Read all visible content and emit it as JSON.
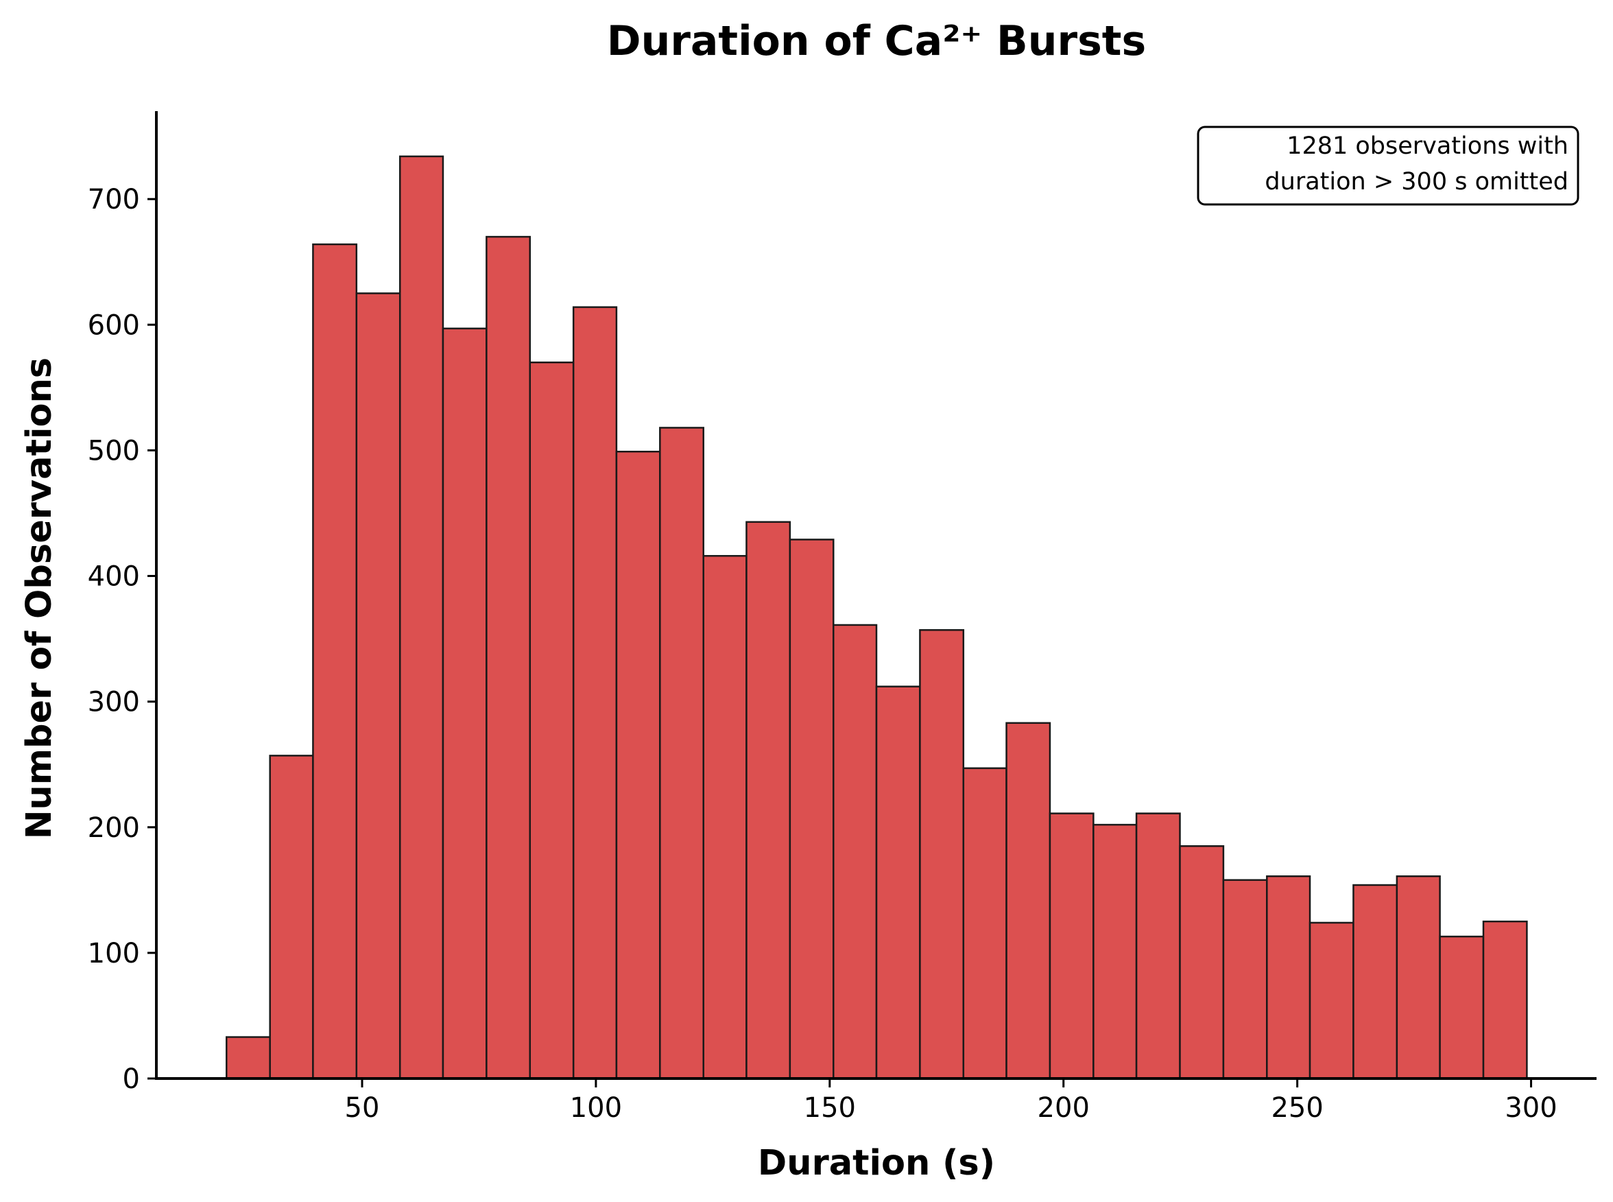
{
  "chart_data": {
    "type": "bar",
    "title": "Duration of Ca²⁺ Bursts",
    "xlabel": "Duration (s)",
    "ylabel": "Number of Observations",
    "xlim": [
      6,
      314
    ],
    "ylim": [
      0,
      770
    ],
    "xticks": [
      50,
      100,
      150,
      200,
      250,
      300
    ],
    "yticks": [
      0,
      100,
      200,
      300,
      400,
      500,
      600,
      700
    ],
    "bin_edges": [
      21,
      30.3,
      39.5,
      48.8,
      58.1,
      67.3,
      76.6,
      85.9,
      95.2,
      104.4,
      113.7,
      123,
      132.2,
      141.5,
      150.8,
      160,
      169.3,
      178.6,
      187.8,
      197.1,
      206.4,
      215.6,
      224.9,
      234.2,
      243.5,
      252.7,
      262,
      271.3,
      280.5,
      289.8,
      299.1
    ],
    "values": [
      33,
      257,
      664,
      625,
      734,
      597,
      670,
      570,
      614,
      499,
      518,
      416,
      443,
      429,
      361,
      312,
      357,
      247,
      283,
      211,
      202,
      211,
      185,
      158,
      161,
      124,
      154,
      161,
      113,
      125
    ],
    "grid": false,
    "bar_color": "#dc5050",
    "edge_color": "#1a1a1a",
    "annotation": [
      "1281 observations with",
      "duration > 300 s omitted"
    ]
  }
}
